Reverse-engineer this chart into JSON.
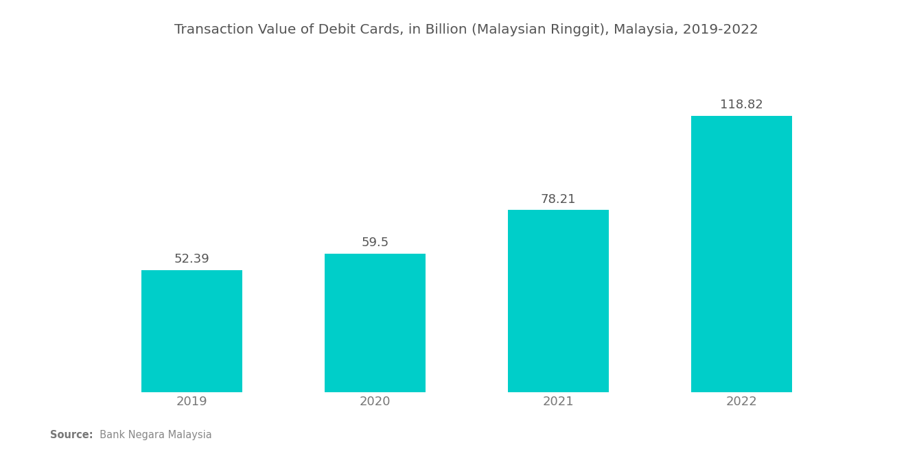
{
  "title": "Transaction Value of Debit Cards, in Billion (Malaysian Ringgit), Malaysia, 2019-2022",
  "categories": [
    "2019",
    "2020",
    "2021",
    "2022"
  ],
  "values": [
    52.39,
    59.5,
    78.21,
    118.82
  ],
  "bar_color": "#00CEC9",
  "background_color": "#ffffff",
  "title_fontsize": 14.5,
  "label_fontsize": 13,
  "tick_fontsize": 13,
  "source_bold": "Source:",
  "source_rest": "  Bank Negara Malaysia",
  "ylim": [
    0,
    145
  ],
  "bar_width": 0.55,
  "label_color": "#555555",
  "tick_color": "#777777"
}
